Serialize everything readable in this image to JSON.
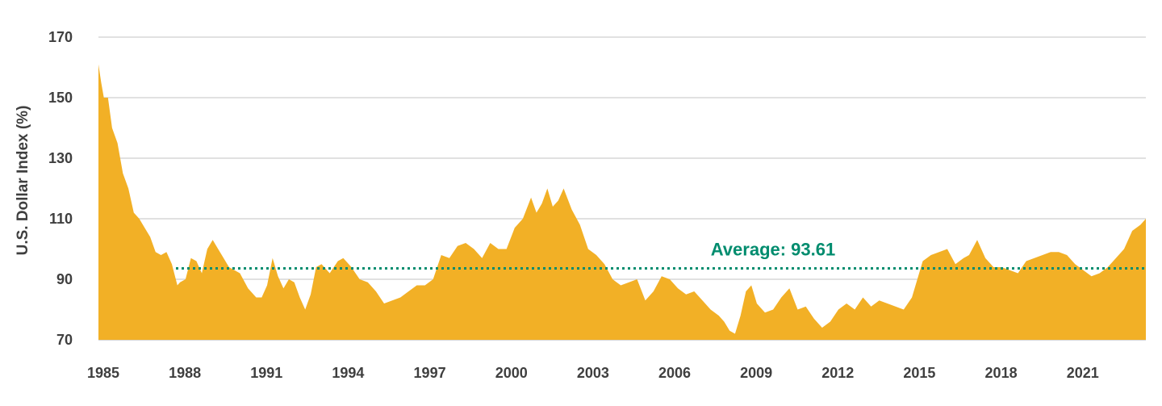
{
  "chart_data": {
    "type": "area",
    "title": "",
    "xlabel": "",
    "ylabel": "U.S. Dollar Index (%)",
    "xlim": [
      1985,
      2023.5
    ],
    "ylim": [
      70,
      170
    ],
    "y_ticks": [
      70,
      90,
      110,
      130,
      150,
      170
    ],
    "x_tick_labels": [
      "1985",
      "1988",
      "1991",
      "1994",
      "1997",
      "2000",
      "2003",
      "2006",
      "2009",
      "2012",
      "2015",
      "2018",
      "2021"
    ],
    "grid": "horizontal",
    "legend": "none",
    "colors": {
      "area": "#F2B026",
      "average": "#008C6E",
      "grid": "#cfcfcf",
      "text": "#3f3f3f"
    },
    "average": {
      "value": 93.61,
      "label": "Average: 93.61"
    },
    "series": [
      {
        "x": [
          1985.0,
          1985.1,
          1985.2,
          1985.35,
          1985.5,
          1985.7,
          1985.9,
          1986.1,
          1986.3,
          1986.5,
          1986.7,
          1986.9,
          1987.1,
          1987.3,
          1987.5,
          1987.7,
          1987.9,
          1988.0,
          1988.2,
          1988.4,
          1988.6,
          1988.8,
          1989.0,
          1989.2,
          1989.4,
          1989.6,
          1989.8,
          1990.0,
          1990.2,
          1990.5,
          1990.8,
          1991.0,
          1991.2,
          1991.4,
          1991.6,
          1991.8,
          1992.0,
          1992.2,
          1992.4,
          1992.6,
          1992.8,
          1993.0,
          1993.2,
          1993.5,
          1993.8,
          1994.0,
          1994.3,
          1994.6,
          1994.9,
          1995.2,
          1995.5,
          1995.8,
          1996.1,
          1996.4,
          1996.7,
          1997.0,
          1997.3,
          1997.6,
          1997.9,
          1998.2,
          1998.5,
          1998.8,
          1999.1,
          1999.4,
          1999.7,
          2000.0,
          2000.3,
          2000.6,
          2000.9,
          2001.1,
          2001.3,
          2001.5,
          2001.7,
          2001.9,
          2002.1,
          2002.4,
          2002.7,
          2003.0,
          2003.3,
          2003.6,
          2003.9,
          2004.2,
          2004.5,
          2004.8,
          2005.1,
          2005.4,
          2005.7,
          2006.0,
          2006.3,
          2006.6,
          2006.9,
          2007.2,
          2007.5,
          2007.8,
          2008.0,
          2008.2,
          2008.4,
          2008.6,
          2008.8,
          2009.0,
          2009.2,
          2009.5,
          2009.8,
          2010.1,
          2010.4,
          2010.7,
          2011.0,
          2011.3,
          2011.6,
          2011.9,
          2012.2,
          2012.5,
          2012.8,
          2013.1,
          2013.4,
          2013.7,
          2014.0,
          2014.3,
          2014.6,
          2014.9,
          2015.1,
          2015.3,
          2015.6,
          2015.9,
          2016.2,
          2016.5,
          2016.8,
          2017.0,
          2017.3,
          2017.6,
          2017.9,
          2018.2,
          2018.5,
          2018.8,
          2019.1,
          2019.4,
          2019.7,
          2020.0,
          2020.3,
          2020.6,
          2020.9,
          2021.2,
          2021.5,
          2021.8,
          2022.1,
          2022.4,
          2022.7,
          2023.0,
          2023.3,
          2023.5
        ],
        "values": [
          161,
          155,
          150,
          150,
          140,
          135,
          125,
          120,
          112,
          110,
          107,
          104,
          99,
          98,
          99,
          95,
          88,
          89,
          90,
          97,
          96,
          92,
          100,
          103,
          100,
          97,
          94,
          93,
          92,
          87,
          84,
          84,
          88,
          97,
          91,
          87,
          90,
          89,
          84,
          80,
          85,
          94,
          95,
          92,
          96,
          97,
          94,
          90,
          89,
          86,
          82,
          83,
          84,
          86,
          88,
          88,
          90,
          98,
          97,
          101,
          102,
          100,
          97,
          102,
          100,
          100,
          107,
          110,
          117,
          112,
          115,
          120,
          114,
          116,
          120,
          113,
          108,
          100,
          98,
          95,
          90,
          88,
          89,
          90,
          83,
          86,
          91,
          90,
          87,
          85,
          86,
          83,
          80,
          78,
          76,
          73,
          72,
          78,
          86,
          88,
          82,
          79,
          80,
          84,
          87,
          80,
          81,
          77,
          74,
          76,
          80,
          82,
          80,
          84,
          81,
          83,
          82,
          81,
          80,
          84,
          90,
          96,
          98,
          99,
          100,
          95,
          97,
          98,
          103,
          97,
          94,
          94,
          93,
          92,
          96,
          97,
          98,
          99,
          99,
          98,
          95,
          93,
          91,
          92,
          94,
          97,
          100,
          106,
          108,
          110
        ]
      }
    ]
  }
}
